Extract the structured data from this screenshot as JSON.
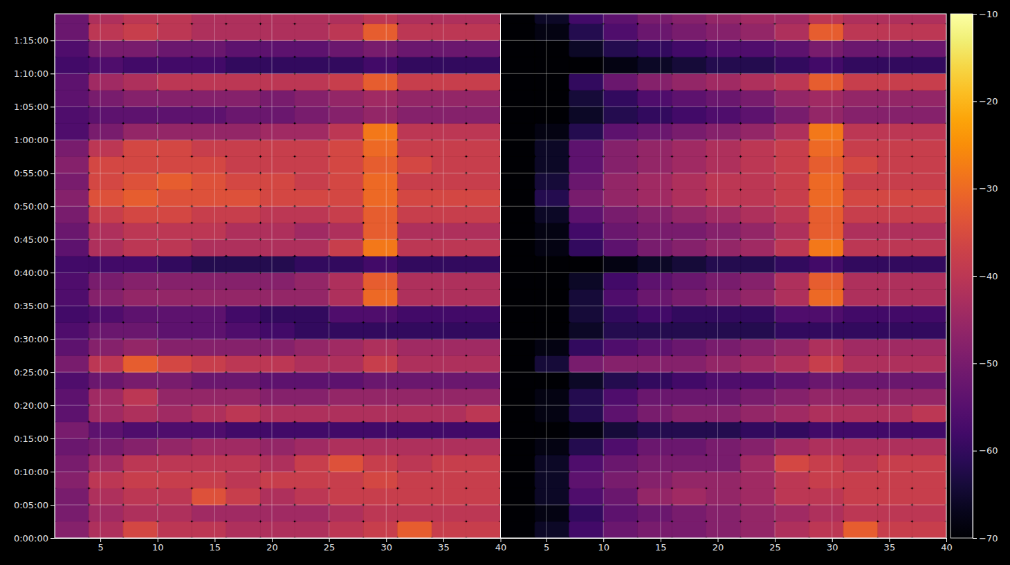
{
  "chart_data": {
    "type": "heatmap",
    "grid": true,
    "xlim": [
      1,
      40
    ],
    "xticks": [
      5,
      10,
      15,
      20,
      25,
      30,
      35,
      40
    ],
    "ylim": [
      0,
      4740
    ],
    "yticks": [
      {
        "value": 0,
        "label": "0:00:00"
      },
      {
        "value": 300,
        "label": "0:05:00"
      },
      {
        "value": 600,
        "label": "0:10:00"
      },
      {
        "value": 900,
        "label": "0:15:00"
      },
      {
        "value": 1200,
        "label": "0:20:00"
      },
      {
        "value": 1500,
        "label": "0:25:00"
      },
      {
        "value": 1800,
        "label": "0:30:00"
      },
      {
        "value": 2100,
        "label": "0:35:00"
      },
      {
        "value": 2400,
        "label": "0:40:00"
      },
      {
        "value": 2700,
        "label": "0:45:00"
      },
      {
        "value": 3000,
        "label": "0:50:00"
      },
      {
        "value": 3300,
        "label": "0:55:00"
      },
      {
        "value": 3600,
        "label": "1:00:00"
      },
      {
        "value": 3900,
        "label": "1:05:00"
      },
      {
        "value": 4200,
        "label": "1:10:00"
      },
      {
        "value": 4500,
        "label": "1:15:00"
      }
    ],
    "x_edges": [
      1,
      4,
      7,
      10,
      13,
      16,
      19,
      22,
      25,
      28,
      31,
      34,
      37,
      40
    ],
    "y_edges": [
      0,
      150,
      300,
      450,
      600,
      750,
      900,
      1050,
      1200,
      1350,
      1500,
      1650,
      1800,
      1950,
      2100,
      2250,
      2400,
      2550,
      2700,
      2850,
      3000,
      3150,
      3300,
      3450,
      3600,
      3750,
      3900,
      4050,
      4200,
      4350,
      4500,
      4650,
      4800
    ],
    "panels": [
      {
        "values": [
          [
            -48,
            -42,
            -36,
            -40,
            -40,
            -42,
            -42,
            -42,
            -40,
            -38,
            -32,
            -38,
            -38
          ],
          [
            -50,
            -44,
            -42,
            -42,
            -44,
            -44,
            -44,
            -44,
            -42,
            -40,
            -40,
            -40,
            -40
          ],
          [
            -50,
            -42,
            -40,
            -40,
            -34,
            -38,
            -42,
            -40,
            -38,
            -38,
            -38,
            -38,
            -38
          ],
          [
            -48,
            -40,
            -38,
            -38,
            -38,
            -40,
            -38,
            -38,
            -38,
            -36,
            -38,
            -38,
            -38
          ],
          [
            -50,
            -44,
            -40,
            -40,
            -40,
            -40,
            -42,
            -38,
            -34,
            -38,
            -40,
            -38,
            -38
          ],
          [
            -52,
            -50,
            -48,
            -46,
            -44,
            -44,
            -46,
            -44,
            -42,
            -42,
            -42,
            -42,
            -42
          ],
          [
            -50,
            -54,
            -56,
            -56,
            -56,
            -58,
            -58,
            -58,
            -58,
            -58,
            -58,
            -58,
            -58
          ],
          [
            -54,
            -44,
            -42,
            -44,
            -42,
            -40,
            -42,
            -42,
            -42,
            -42,
            -42,
            -42,
            -40
          ],
          [
            -54,
            -44,
            -40,
            -46,
            -46,
            -46,
            -48,
            -48,
            -46,
            -46,
            -46,
            -46,
            -46
          ],
          [
            -56,
            -52,
            -50,
            -50,
            -52,
            -52,
            -54,
            -54,
            -54,
            -52,
            -52,
            -52,
            -52
          ],
          [
            -50,
            -40,
            -32,
            -36,
            -38,
            -40,
            -40,
            -42,
            -42,
            -38,
            -42,
            -42,
            -42
          ],
          [
            -54,
            -48,
            -46,
            -48,
            -48,
            -48,
            -48,
            -46,
            -44,
            -42,
            -44,
            -44,
            -44
          ],
          [
            -56,
            -52,
            -52,
            -54,
            -54,
            -56,
            -58,
            -60,
            -60,
            -60,
            -60,
            -60,
            -60
          ],
          [
            -58,
            -56,
            -54,
            -54,
            -54,
            -58,
            -60,
            -60,
            -56,
            -56,
            -58,
            -58,
            -58
          ],
          [
            -56,
            -48,
            -46,
            -46,
            -46,
            -46,
            -46,
            -46,
            -42,
            -30,
            -42,
            -42,
            -42
          ],
          [
            -56,
            -50,
            -48,
            -48,
            -48,
            -48,
            -48,
            -46,
            -42,
            -32,
            -42,
            -42,
            -42
          ],
          [
            -58,
            -58,
            -58,
            -60,
            -62,
            -62,
            -62,
            -60,
            -60,
            -58,
            -60,
            -60,
            -60
          ],
          [
            -54,
            -42,
            -40,
            -40,
            -42,
            -42,
            -42,
            -42,
            -38,
            -28,
            -40,
            -40,
            -40
          ],
          [
            -52,
            -42,
            -40,
            -40,
            -40,
            -42,
            -42,
            -44,
            -42,
            -32,
            -42,
            -42,
            -42
          ],
          [
            -50,
            -38,
            -36,
            -36,
            -38,
            -38,
            -40,
            -40,
            -38,
            -32,
            -38,
            -38,
            -38
          ],
          [
            -48,
            -34,
            -32,
            -34,
            -34,
            -34,
            -36,
            -36,
            -36,
            -30,
            -36,
            -36,
            -36
          ],
          [
            -50,
            -36,
            -34,
            -32,
            -34,
            -36,
            -36,
            -38,
            -36,
            -30,
            -38,
            -38,
            -38
          ],
          [
            -48,
            -36,
            -36,
            -36,
            -36,
            -38,
            -38,
            -38,
            -36,
            -32,
            -36,
            -38,
            -38
          ],
          [
            -50,
            -40,
            -36,
            -36,
            -38,
            -38,
            -38,
            -38,
            -36,
            -30,
            -38,
            -38,
            -38
          ],
          [
            -56,
            -50,
            -46,
            -46,
            -46,
            -46,
            -44,
            -44,
            -40,
            -28,
            -40,
            -40,
            -40
          ],
          [
            -56,
            -54,
            -54,
            -54,
            -54,
            -52,
            -52,
            -50,
            -48,
            -46,
            -48,
            -48,
            -48
          ],
          [
            -54,
            -50,
            -48,
            -48,
            -48,
            -48,
            -50,
            -48,
            -46,
            -44,
            -46,
            -46,
            -46
          ],
          [
            -54,
            -44,
            -42,
            -40,
            -40,
            -40,
            -40,
            -40,
            -38,
            -32,
            -38,
            -38,
            -38
          ],
          [
            -58,
            -56,
            -58,
            -58,
            -58,
            -60,
            -60,
            -60,
            -60,
            -58,
            -60,
            -60,
            -60
          ],
          [
            -56,
            -50,
            -50,
            -52,
            -52,
            -54,
            -54,
            -54,
            -52,
            -50,
            -52,
            -52,
            -52
          ],
          [
            -52,
            -40,
            -38,
            -40,
            -42,
            -42,
            -42,
            -42,
            -40,
            -32,
            -40,
            -40,
            -40
          ],
          [
            -52,
            -42,
            -40,
            -40,
            -42,
            -42,
            -42,
            -42,
            -42,
            -40,
            -42,
            -42,
            -42
          ]
        ]
      },
      {
        "values": [
          [
            -70,
            -66,
            -58,
            -52,
            -50,
            -50,
            -48,
            -46,
            -42,
            -40,
            -32,
            -38,
            -38
          ],
          [
            -70,
            -68,
            -60,
            -54,
            -52,
            -50,
            -48,
            -46,
            -44,
            -42,
            -40,
            -40,
            -40
          ],
          [
            -70,
            -66,
            -56,
            -52,
            -46,
            -44,
            -46,
            -44,
            -40,
            -40,
            -38,
            -38,
            -38
          ],
          [
            -70,
            -66,
            -54,
            -50,
            -48,
            -46,
            -46,
            -44,
            -40,
            -38,
            -38,
            -38,
            -38
          ],
          [
            -70,
            -66,
            -56,
            -52,
            -50,
            -50,
            -50,
            -44,
            -36,
            -38,
            -40,
            -38,
            -38
          ],
          [
            -70,
            -68,
            -62,
            -56,
            -52,
            -52,
            -50,
            -48,
            -44,
            -42,
            -42,
            -42,
            -42
          ],
          [
            -70,
            -70,
            -68,
            -64,
            -62,
            -62,
            -62,
            -60,
            -60,
            -58,
            -58,
            -58,
            -58
          ],
          [
            -70,
            -68,
            -62,
            -54,
            -50,
            -48,
            -48,
            -46,
            -44,
            -42,
            -42,
            -42,
            -40
          ],
          [
            -70,
            -68,
            -62,
            -56,
            -52,
            -52,
            -52,
            -50,
            -48,
            -46,
            -46,
            -46,
            -46
          ],
          [
            -70,
            -70,
            -66,
            -62,
            -60,
            -58,
            -56,
            -56,
            -54,
            -52,
            -52,
            -52,
            -52
          ],
          [
            -70,
            -64,
            -50,
            -48,
            -48,
            -48,
            -46,
            -44,
            -42,
            -38,
            -42,
            -42,
            -42
          ],
          [
            -70,
            -68,
            -60,
            -56,
            -54,
            -52,
            -50,
            -48,
            -46,
            -42,
            -44,
            -44,
            -44
          ],
          [
            -70,
            -70,
            -66,
            -62,
            -62,
            -62,
            -62,
            -62,
            -60,
            -60,
            -60,
            -60,
            -60
          ],
          [
            -70,
            -70,
            -64,
            -60,
            -58,
            -60,
            -60,
            -60,
            -56,
            -56,
            -58,
            -58,
            -58
          ],
          [
            -70,
            -70,
            -64,
            -56,
            -52,
            -50,
            -48,
            -46,
            -42,
            -30,
            -42,
            -42,
            -42
          ],
          [
            -70,
            -70,
            -66,
            -58,
            -54,
            -52,
            -50,
            -48,
            -42,
            -32,
            -42,
            -42,
            -42
          ],
          [
            -70,
            -70,
            -70,
            -68,
            -66,
            -64,
            -62,
            -62,
            -60,
            -58,
            -60,
            -60,
            -60
          ],
          [
            -70,
            -68,
            -60,
            -54,
            -50,
            -48,
            -46,
            -44,
            -40,
            -28,
            -40,
            -40,
            -40
          ],
          [
            -70,
            -68,
            -58,
            -52,
            -50,
            -50,
            -48,
            -46,
            -42,
            -32,
            -42,
            -42,
            -42
          ],
          [
            -70,
            -66,
            -54,
            -50,
            -48,
            -46,
            -44,
            -42,
            -40,
            -32,
            -38,
            -38,
            -38
          ],
          [
            -70,
            -62,
            -50,
            -46,
            -44,
            -42,
            -40,
            -40,
            -38,
            -30,
            -36,
            -36,
            -36
          ],
          [
            -70,
            -64,
            -52,
            -46,
            -44,
            -42,
            -40,
            -40,
            -38,
            -30,
            -38,
            -38,
            -38
          ],
          [
            -70,
            -66,
            -54,
            -48,
            -46,
            -44,
            -42,
            -40,
            -38,
            -32,
            -36,
            -38,
            -38
          ],
          [
            -70,
            -66,
            -54,
            -48,
            -46,
            -44,
            -42,
            -40,
            -38,
            -30,
            -38,
            -38,
            -38
          ],
          [
            -70,
            -68,
            -62,
            -54,
            -52,
            -50,
            -48,
            -46,
            -42,
            -28,
            -40,
            -40,
            -40
          ],
          [
            -70,
            -70,
            -66,
            -62,
            -60,
            -58,
            -56,
            -54,
            -50,
            -46,
            -48,
            -48,
            -48
          ],
          [
            -70,
            -70,
            -64,
            -60,
            -56,
            -54,
            -52,
            -50,
            -46,
            -44,
            -46,
            -46,
            -46
          ],
          [
            -70,
            -70,
            -60,
            -52,
            -48,
            -46,
            -44,
            -42,
            -40,
            -32,
            -38,
            -38,
            -38
          ],
          [
            -70,
            -70,
            -70,
            -68,
            -66,
            -64,
            -62,
            -62,
            -60,
            -58,
            -60,
            -60,
            -60
          ],
          [
            -70,
            -70,
            -66,
            -62,
            -60,
            -58,
            -56,
            -56,
            -54,
            -50,
            -52,
            -52,
            -52
          ],
          [
            -70,
            -68,
            -62,
            -56,
            -52,
            -50,
            -48,
            -46,
            -42,
            -32,
            -40,
            -40,
            -40
          ],
          [
            -70,
            -66,
            -58,
            -54,
            -50,
            -48,
            -46,
            -44,
            -44,
            -40,
            -42,
            -42,
            -42
          ]
        ]
      }
    ],
    "colorbar": {
      "range": [
        -70,
        -10
      ],
      "ticks": [
        {
          "value": -70,
          "label": "−70"
        },
        {
          "value": -60,
          "label": "−60"
        },
        {
          "value": -50,
          "label": "−50"
        },
        {
          "value": -40,
          "label": "−40"
        },
        {
          "value": -30,
          "label": "−30"
        },
        {
          "value": -20,
          "label": "−20"
        },
        {
          "value": -10,
          "label": "−10"
        }
      ]
    }
  }
}
